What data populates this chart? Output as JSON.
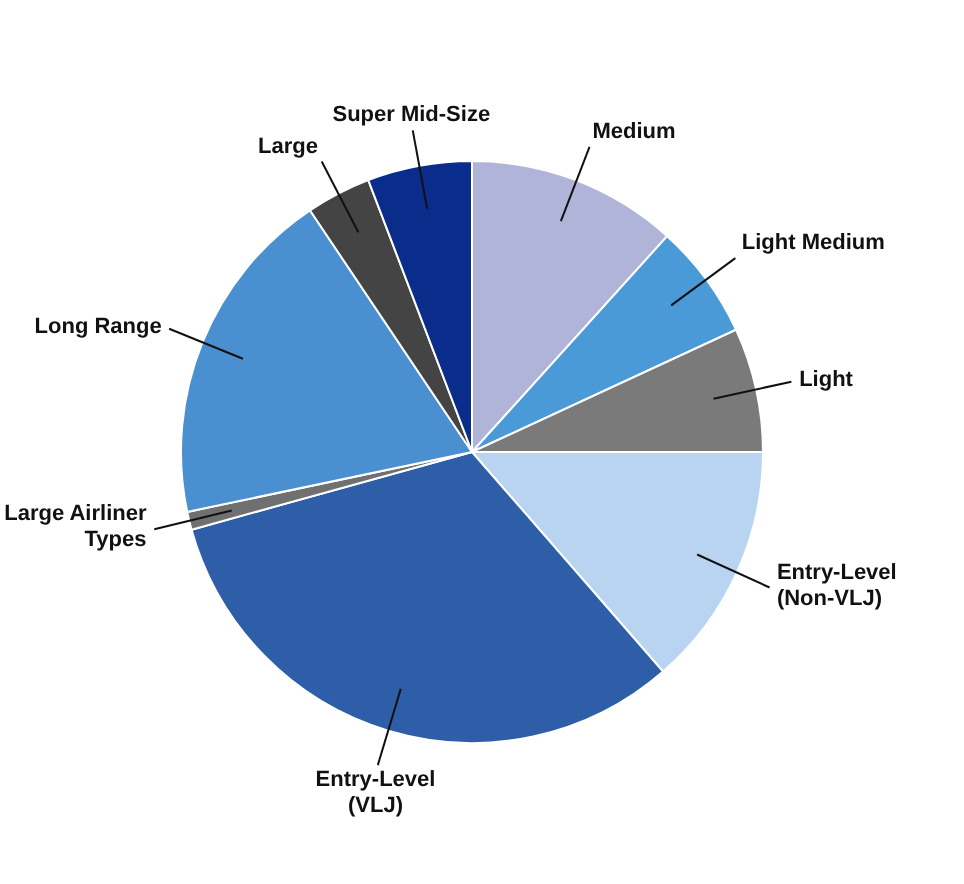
{
  "chart_data": {
    "type": "pie",
    "categories": [
      "Medium",
      "Light Medium",
      "Light",
      "Entry-Level (Non-VLJ)",
      "Entry-Level (VLJ)",
      "Large Airliner Types",
      "Long Range",
      "Large",
      "Super Mid-Size"
    ],
    "values": [
      11.7,
      6.4,
      6.9,
      13.6,
      32.1,
      1.0,
      18.9,
      3.6,
      5.8
    ],
    "colors": [
      "#b0b4d8",
      "#4a9ad8",
      "#7a7a7a",
      "#b8d4f0",
      "#2e5ea8",
      "#707070",
      "#4a90d0",
      "#444444",
      "#0a2d8c"
    ],
    "legend": false
  }
}
